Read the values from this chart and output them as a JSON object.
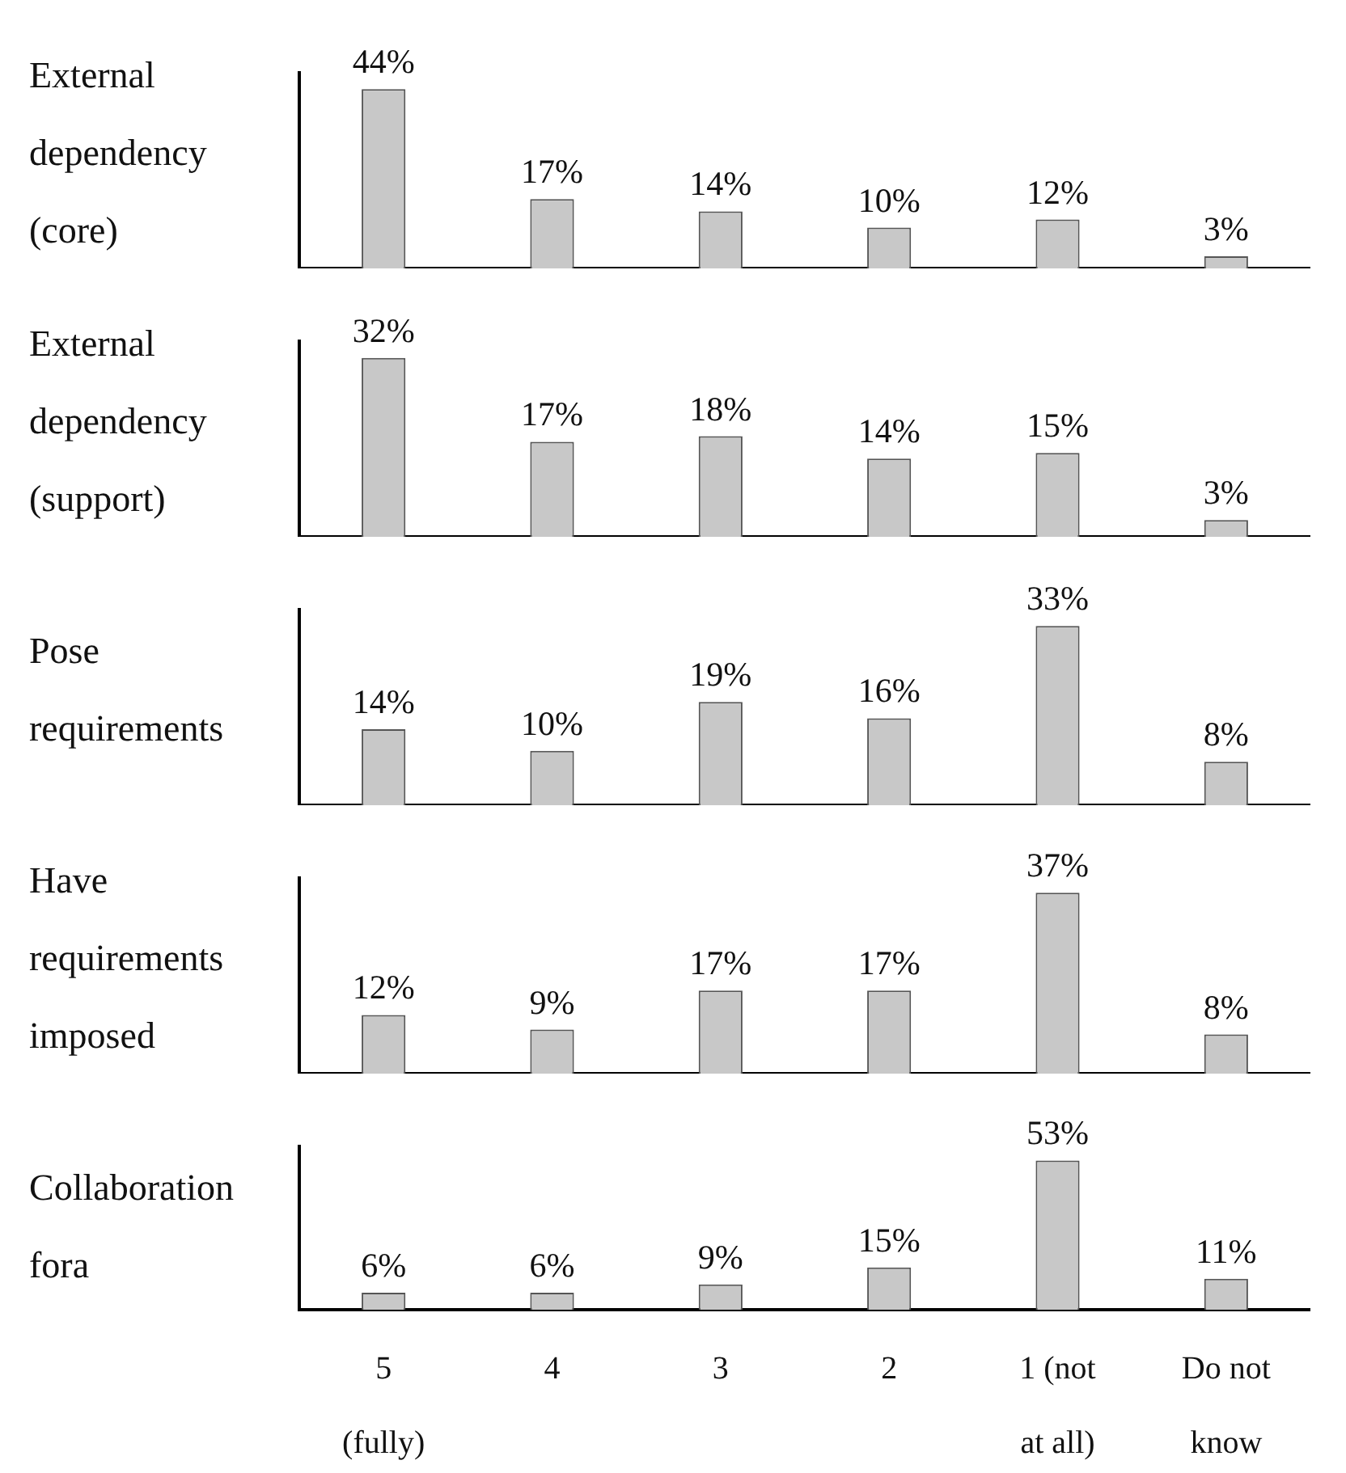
{
  "chart_data": [
    {
      "type": "bar",
      "title": "External dependency (core)",
      "categories": [
        null,
        null,
        null,
        null,
        null,
        null
      ],
      "values": [
        44,
        17,
        14,
        10,
        12,
        3
      ],
      "value_labels": [
        "44%",
        "17%",
        "14%",
        "10%",
        "12%",
        "3%"
      ],
      "color": "#c8c8c8",
      "ylim": [
        0,
        48
      ],
      "tick_labels": false
    },
    {
      "type": "bar",
      "title": "External dependency (support)",
      "categories": [
        null,
        null,
        null,
        null,
        null,
        null
      ],
      "values": [
        32,
        17,
        18,
        14,
        15,
        3
      ],
      "value_labels": [
        "32%",
        "17%",
        "18%",
        "14%",
        "15%",
        "3%"
      ],
      "color": "#c8c8c8",
      "ylim": [
        0,
        35
      ],
      "tick_labels": false
    },
    {
      "type": "bar",
      "title": "Pose requirements",
      "categories": [
        null,
        null,
        null,
        null,
        null,
        null
      ],
      "values": [
        14,
        10,
        19,
        16,
        33,
        8
      ],
      "value_labels": [
        "14%",
        "10%",
        "19%",
        "16%",
        "33%",
        "8%"
      ],
      "color": "#c8c8c8",
      "ylim": [
        0,
        36
      ],
      "tick_labels": false
    },
    {
      "type": "bar",
      "title": "Have requirements imposed",
      "categories": [
        null,
        null,
        null,
        null,
        null,
        null
      ],
      "values": [
        12,
        9,
        17,
        17,
        37,
        8
      ],
      "value_labels": [
        "12%",
        "9%",
        "17%",
        "17%",
        "37%",
        "8%"
      ],
      "color": "#c8c8c8",
      "ylim": [
        0,
        40
      ],
      "tick_labels": false
    },
    {
      "type": "bar",
      "title": "Collaboration fora",
      "categories": [
        "5 (fully)",
        "4",
        "3",
        "2",
        "1 (not at all)",
        "Do not know"
      ],
      "values": [
        6,
        6,
        9,
        15,
        53,
        11
      ],
      "value_labels": [
        "6%",
        "6%",
        "9%",
        "15%",
        "53%",
        "11%"
      ],
      "color": "#c8c8c8",
      "ylim": [
        0,
        58
      ],
      "tick_labels": "x"
    }
  ]
}
